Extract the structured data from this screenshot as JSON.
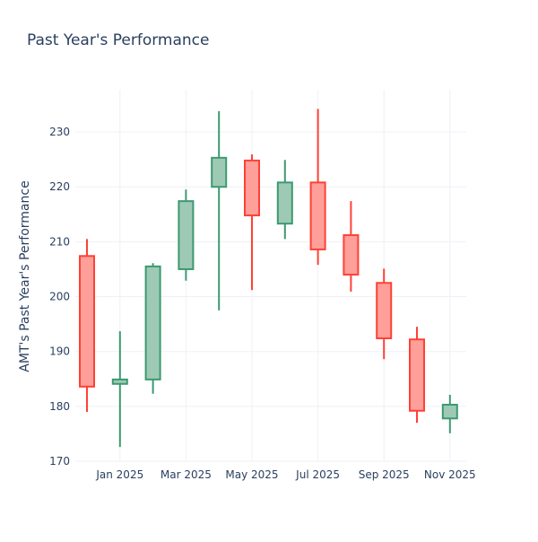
{
  "chart_data": {
    "type": "candlestick",
    "title": "Past Year's Performance",
    "xlabel": "",
    "ylabel": "AMT's Past Year's Performance",
    "ylim": [
      170,
      237.7
    ],
    "yticks": [
      170,
      180,
      190,
      200,
      210,
      220,
      230
    ],
    "xtick_labels": [
      {
        "index": 1,
        "label": "Jan 2025"
      },
      {
        "index": 3,
        "label": "Mar 2025"
      },
      {
        "index": 5,
        "label": "May 2025"
      },
      {
        "index": 7,
        "label": "Jul 2025"
      },
      {
        "index": 9,
        "label": "Sep 2025"
      },
      {
        "index": 11,
        "label": "Nov 2025"
      }
    ],
    "grid": true,
    "colors": {
      "increasing": "#3d9970",
      "increasing_fill": "#9ecab5",
      "decreasing": "#ff4136",
      "decreasing_fill": "#ff9f9a",
      "grid": "#eef0f6",
      "text": "#2a3f5f"
    },
    "candles": [
      {
        "month": "Dec 2024",
        "open": 207.4,
        "high": 210.5,
        "low": 179.0,
        "close": 183.6
      },
      {
        "month": "Jan 2025",
        "open": 184.1,
        "high": 193.7,
        "low": 172.6,
        "close": 184.9
      },
      {
        "month": "Feb 2025",
        "open": 184.9,
        "high": 206.1,
        "low": 182.3,
        "close": 205.5
      },
      {
        "month": "Mar 2025",
        "open": 205.0,
        "high": 219.5,
        "low": 202.9,
        "close": 217.4
      },
      {
        "month": "Apr 2025",
        "open": 220.0,
        "high": 233.8,
        "low": 197.5,
        "close": 225.3
      },
      {
        "month": "May 2025",
        "open": 224.8,
        "high": 225.9,
        "low": 201.2,
        "close": 214.8
      },
      {
        "month": "Jun 2025",
        "open": 213.3,
        "high": 224.9,
        "low": 210.5,
        "close": 220.8
      },
      {
        "month": "Jul 2025",
        "open": 220.8,
        "high": 234.2,
        "low": 205.8,
        "close": 208.6
      },
      {
        "month": "Aug 2025",
        "open": 211.2,
        "high": 217.4,
        "low": 200.9,
        "close": 204.0
      },
      {
        "month": "Sep 2025",
        "open": 202.5,
        "high": 205.1,
        "low": 188.6,
        "close": 192.4
      },
      {
        "month": "Oct 2025",
        "open": 192.2,
        "high": 194.5,
        "low": 177.0,
        "close": 179.2
      },
      {
        "month": "Nov 2025",
        "open": 177.8,
        "high": 182.1,
        "low": 175.1,
        "close": 180.3
      }
    ]
  }
}
